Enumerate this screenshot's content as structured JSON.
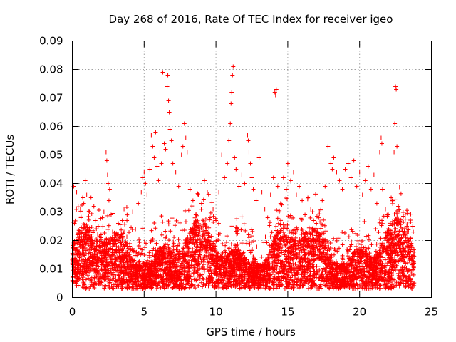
{
  "chart_data": {
    "type": "scatter",
    "title": "Day 268 of 2016, Rate Of TEC Index for receiver igeo",
    "xlabel": "GPS time / hours",
    "ylabel": "ROTI / TECUs",
    "xlim": [
      0,
      25
    ],
    "ylim": [
      0,
      0.09
    ],
    "xticks": [
      "0",
      "5",
      "10",
      "15",
      "20",
      "25"
    ],
    "yticks": [
      "0",
      "0.01",
      "0.02",
      "0.03",
      "0.04",
      "0.05",
      "0.06",
      "0.07",
      "0.08",
      "0.09"
    ],
    "grid": true,
    "legend": "none",
    "marker": "+",
    "marker_color": "#ff0000",
    "series": [
      {
        "name": "ROTI",
        "color": "#ff0000",
        "points": [
          [
            0.05,
            0.011
          ],
          [
            0.1,
            0.039
          ],
          [
            0.15,
            0.026
          ],
          [
            0.25,
            0.019
          ],
          [
            0.3,
            0.037
          ],
          [
            0.4,
            0.022
          ],
          [
            0.5,
            0.014
          ],
          [
            0.6,
            0.028
          ],
          [
            0.7,
            0.016
          ],
          [
            0.8,
            0.033
          ],
          [
            0.9,
            0.041
          ],
          [
            1.0,
            0.036
          ],
          [
            1.1,
            0.024
          ],
          [
            1.2,
            0.03
          ],
          [
            1.3,
            0.035
          ],
          [
            1.4,
            0.02
          ],
          [
            1.5,
            0.032
          ],
          [
            1.6,
            0.027
          ],
          [
            1.7,
            0.018
          ],
          [
            1.8,
            0.025
          ],
          [
            2.0,
            0.021
          ],
          [
            2.2,
            0.03
          ],
          [
            2.35,
            0.051
          ],
          [
            2.4,
            0.048
          ],
          [
            2.45,
            0.043
          ],
          [
            2.5,
            0.04
          ],
          [
            2.55,
            0.034
          ],
          [
            2.6,
            0.038
          ],
          [
            2.7,
            0.029
          ],
          [
            2.8,
            0.023
          ],
          [
            3.0,
            0.019
          ],
          [
            3.2,
            0.026
          ],
          [
            3.4,
            0.022
          ],
          [
            3.6,
            0.031
          ],
          [
            3.8,
            0.027
          ],
          [
            4.0,
            0.018
          ],
          [
            4.2,
            0.03
          ],
          [
            4.4,
            0.024
          ],
          [
            4.6,
            0.033
          ],
          [
            4.8,
            0.037
          ],
          [
            4.9,
            0.042
          ],
          [
            5.0,
            0.044
          ],
          [
            5.1,
            0.04
          ],
          [
            5.2,
            0.036
          ],
          [
            5.4,
            0.045
          ],
          [
            5.5,
            0.057
          ],
          [
            5.6,
            0.053
          ],
          [
            5.7,
            0.049
          ],
          [
            5.8,
            0.058
          ],
          [
            5.9,
            0.046
          ],
          [
            6.0,
            0.041
          ],
          [
            6.1,
            0.051
          ],
          [
            6.2,
            0.047
          ],
          [
            6.3,
            0.079
          ],
          [
            6.4,
            0.054
          ],
          [
            6.5,
            0.052
          ],
          [
            6.6,
            0.074
          ],
          [
            6.65,
            0.078
          ],
          [
            6.7,
            0.069
          ],
          [
            6.75,
            0.065
          ],
          [
            6.8,
            0.059
          ],
          [
            6.9,
            0.055
          ],
          [
            7.0,
            0.047
          ],
          [
            7.2,
            0.044
          ],
          [
            7.4,
            0.039
          ],
          [
            7.6,
            0.05
          ],
          [
            7.7,
            0.053
          ],
          [
            7.8,
            0.061
          ],
          [
            7.9,
            0.056
          ],
          [
            8.0,
            0.051
          ],
          [
            8.2,
            0.038
          ],
          [
            8.4,
            0.034
          ],
          [
            8.6,
            0.029
          ],
          [
            8.8,
            0.036
          ],
          [
            9.0,
            0.033
          ],
          [
            9.2,
            0.041
          ],
          [
            9.4,
            0.037
          ],
          [
            9.6,
            0.028
          ],
          [
            9.8,
            0.031
          ],
          [
            10.0,
            0.027
          ],
          [
            10.2,
            0.037
          ],
          [
            10.4,
            0.05
          ],
          [
            10.6,
            0.042
          ],
          [
            10.8,
            0.047
          ],
          [
            10.9,
            0.055
          ],
          [
            11.0,
            0.061
          ],
          [
            11.05,
            0.068
          ],
          [
            11.1,
            0.072
          ],
          [
            11.15,
            0.078
          ],
          [
            11.2,
            0.081
          ],
          [
            11.3,
            0.049
          ],
          [
            11.4,
            0.045
          ],
          [
            11.6,
            0.039
          ],
          [
            11.8,
            0.043
          ],
          [
            12.0,
            0.04
          ],
          [
            12.2,
            0.057
          ],
          [
            12.25,
            0.055
          ],
          [
            12.3,
            0.051
          ],
          [
            12.4,
            0.047
          ],
          [
            12.5,
            0.042
          ],
          [
            12.6,
            0.038
          ],
          [
            12.8,
            0.034
          ],
          [
            13.0,
            0.049
          ],
          [
            13.2,
            0.037
          ],
          [
            13.4,
            0.031
          ],
          [
            13.6,
            0.028
          ],
          [
            13.8,
            0.036
          ],
          [
            14.0,
            0.042
          ],
          [
            14.1,
            0.072
          ],
          [
            14.15,
            0.071
          ],
          [
            14.2,
            0.073
          ],
          [
            14.3,
            0.039
          ],
          [
            14.5,
            0.033
          ],
          [
            14.7,
            0.042
          ],
          [
            14.9,
            0.038
          ],
          [
            15.0,
            0.047
          ],
          [
            15.2,
            0.041
          ],
          [
            15.4,
            0.044
          ],
          [
            15.6,
            0.036
          ],
          [
            15.8,
            0.039
          ],
          [
            16.0,
            0.034
          ],
          [
            16.2,
            0.029
          ],
          [
            16.4,
            0.035
          ],
          [
            16.6,
            0.031
          ],
          [
            16.8,
            0.027
          ],
          [
            17.0,
            0.026
          ],
          [
            17.2,
            0.03
          ],
          [
            17.4,
            0.034
          ],
          [
            17.6,
            0.039
          ],
          [
            17.8,
            0.053
          ],
          [
            18.0,
            0.047
          ],
          [
            18.1,
            0.045
          ],
          [
            18.2,
            0.049
          ],
          [
            18.4,
            0.044
          ],
          [
            18.6,
            0.041
          ],
          [
            18.8,
            0.038
          ],
          [
            19.0,
            0.045
          ],
          [
            19.2,
            0.047
          ],
          [
            19.4,
            0.042
          ],
          [
            19.6,
            0.048
          ],
          [
            19.8,
            0.039
          ],
          [
            20.0,
            0.044
          ],
          [
            20.2,
            0.036
          ],
          [
            20.4,
            0.041
          ],
          [
            20.6,
            0.046
          ],
          [
            20.8,
            0.038
          ],
          [
            21.0,
            0.043
          ],
          [
            21.2,
            0.033
          ],
          [
            21.4,
            0.051
          ],
          [
            21.5,
            0.056
          ],
          [
            21.55,
            0.054
          ],
          [
            21.6,
            0.038
          ],
          [
            21.8,
            0.031
          ],
          [
            22.0,
            0.029
          ],
          [
            22.2,
            0.035
          ],
          [
            22.4,
            0.051
          ],
          [
            22.45,
            0.061
          ],
          [
            22.5,
            0.074
          ],
          [
            22.55,
            0.073
          ],
          [
            22.6,
            0.053
          ],
          [
            22.7,
            0.032
          ],
          [
            22.8,
            0.03
          ],
          [
            23.0,
            0.024
          ],
          [
            23.2,
            0.02
          ],
          [
            23.4,
            0.023
          ],
          [
            23.6,
            0.019
          ],
          [
            23.7,
            0.025
          ],
          [
            23.8,
            0.016
          ]
        ]
      }
    ]
  }
}
